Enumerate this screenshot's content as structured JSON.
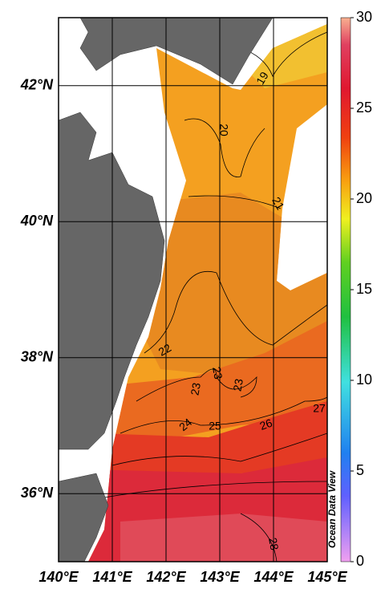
{
  "map": {
    "xlim": [
      140,
      145
    ],
    "ylim": [
      35,
      43
    ],
    "xticks": [
      {
        "value": 140,
        "label": "140°E"
      },
      {
        "value": 141,
        "label": "141°E"
      },
      {
        "value": 142,
        "label": "142°E"
      },
      {
        "value": 143,
        "label": "143°E"
      },
      {
        "value": 144,
        "label": "144°E"
      },
      {
        "value": 145,
        "label": "145°E"
      }
    ],
    "yticks": [
      {
        "value": 36,
        "label": "36°N"
      },
      {
        "value": 38,
        "label": "38°N"
      },
      {
        "value": 40,
        "label": "40°N"
      },
      {
        "value": 42,
        "label": "42°N"
      }
    ],
    "colorbar": {
      "lim": [
        0,
        30
      ],
      "ticks": [
        0,
        5,
        10,
        15,
        20,
        25,
        30
      ]
    },
    "contour_labels": [
      19,
      20,
      21,
      22,
      23,
      23,
      23,
      24,
      25,
      26,
      27,
      28
    ],
    "watermark": "Ocean Data View"
  }
}
